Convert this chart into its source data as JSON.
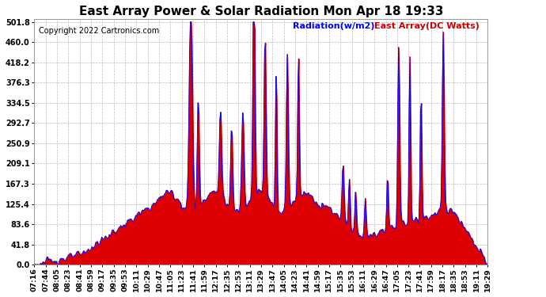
{
  "title": "East Array Power & Solar Radiation Mon Apr 18 19:33",
  "copyright": "Copyright 2022 Cartronics.com",
  "legend_radiation": "Radiation(w/m2)",
  "legend_array": "East Array(DC Watts)",
  "legend_radiation_color": "#0000ff",
  "legend_array_color": "#cc0000",
  "fill_color": "#dd0000",
  "line_color": "#0000ff",
  "background_color": "#ffffff",
  "grid_color": "#bbbbbb",
  "yticks": [
    0.0,
    41.8,
    83.6,
    125.4,
    167.3,
    209.1,
    250.9,
    292.7,
    334.5,
    376.3,
    418.2,
    460.0,
    501.8
  ],
  "ymax": 501.8,
  "ymin": 0.0,
  "xtick_labels": [
    "07:16",
    "07:44",
    "08:05",
    "08:23",
    "08:41",
    "08:59",
    "09:17",
    "09:35",
    "09:53",
    "10:11",
    "10:29",
    "10:47",
    "11:05",
    "11:23",
    "11:41",
    "11:59",
    "12:17",
    "12:35",
    "12:53",
    "13:11",
    "13:29",
    "13:47",
    "14:05",
    "14:23",
    "14:41",
    "14:59",
    "15:17",
    "15:35",
    "15:53",
    "16:11",
    "16:29",
    "16:47",
    "17:05",
    "17:23",
    "17:41",
    "17:59",
    "18:17",
    "18:35",
    "18:53",
    "19:11",
    "19:29"
  ],
  "title_fontsize": 11,
  "axis_fontsize": 7,
  "copyright_fontsize": 7,
  "legend_fontsize": 8
}
